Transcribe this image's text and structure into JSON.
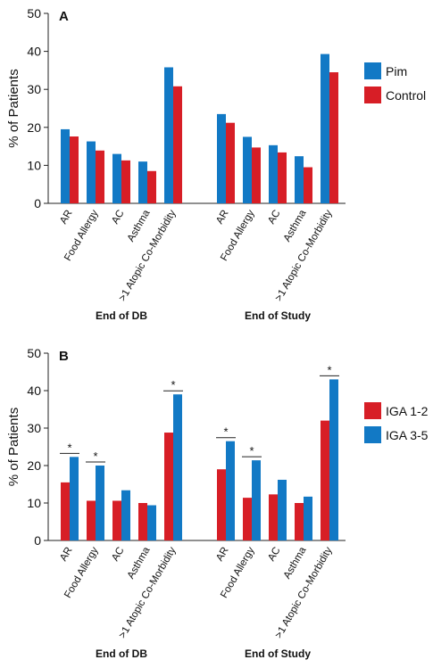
{
  "chart_data": [
    {
      "panel": "A",
      "type": "bar",
      "ylabel": "% of Patients",
      "ylim": [
        0,
        50
      ],
      "yticks": [
        0,
        10,
        20,
        30,
        40,
        50
      ],
      "grid": false,
      "legend_position": "right",
      "groups": [
        {
          "name": "End of DB",
          "categories": [
            "AR",
            "Food Allergy",
            "AC",
            "Asthma",
            ">1 Atopic Co-Morbidity"
          ],
          "series": [
            {
              "name": "Pim",
              "values": [
                19.5,
                16.3,
                13.0,
                11.0,
                35.8
              ]
            },
            {
              "name": "Control",
              "values": [
                17.6,
                13.9,
                11.3,
                8.5,
                30.8
              ]
            }
          ]
        },
        {
          "name": "End of Study",
          "categories": [
            "AR",
            "Food Allergy",
            "AC",
            "Asthma",
            ">1 Atopic Co-Morbidity"
          ],
          "series": [
            {
              "name": "Pim",
              "values": [
                23.5,
                17.5,
                15.3,
                12.4,
                39.3
              ]
            },
            {
              "name": "Control",
              "values": [
                21.2,
                14.7,
                13.4,
                9.5,
                34.5
              ]
            }
          ]
        }
      ],
      "series_colors": {
        "Pim": "#1279c5",
        "Control": "#d71e26"
      },
      "significance": []
    },
    {
      "panel": "B",
      "type": "bar",
      "ylabel": "% of Patients",
      "ylim": [
        0,
        50
      ],
      "yticks": [
        0,
        10,
        20,
        30,
        40,
        50
      ],
      "grid": false,
      "legend_position": "right",
      "groups": [
        {
          "name": "End of DB",
          "categories": [
            "AR",
            "Food Allergy",
            "AC",
            "Asthma",
            ">1 Atopic Co-Morbidity"
          ],
          "series": [
            {
              "name": "IGA 1-2",
              "values": [
                15.5,
                10.6,
                10.6,
                10.0,
                28.8
              ]
            },
            {
              "name": "IGA 3-5",
              "values": [
                22.3,
                20.0,
                13.4,
                9.4,
                39.0
              ]
            }
          ]
        },
        {
          "name": "End of Study",
          "categories": [
            "AR",
            "Food Allergy",
            "AC",
            "Asthma",
            ">1 Atopic Co-Morbidity"
          ],
          "series": [
            {
              "name": "IGA 1-2",
              "values": [
                19.0,
                11.4,
                12.3,
                10.0,
                32.0
              ]
            },
            {
              "name": "IGA 3-5",
              "values": [
                26.5,
                21.4,
                16.2,
                11.7,
                43.0
              ]
            }
          ]
        }
      ],
      "series_colors": {
        "IGA 1-2": "#d71e26",
        "IGA 3-5": "#1279c5"
      },
      "significance": [
        {
          "group": 0,
          "category": 0,
          "label": "*"
        },
        {
          "group": 0,
          "category": 1,
          "label": "*"
        },
        {
          "group": 0,
          "category": 4,
          "label": "*"
        },
        {
          "group": 1,
          "category": 0,
          "label": "*"
        },
        {
          "group": 1,
          "category": 1,
          "label": "*"
        },
        {
          "group": 1,
          "category": 4,
          "label": "*"
        }
      ]
    }
  ]
}
